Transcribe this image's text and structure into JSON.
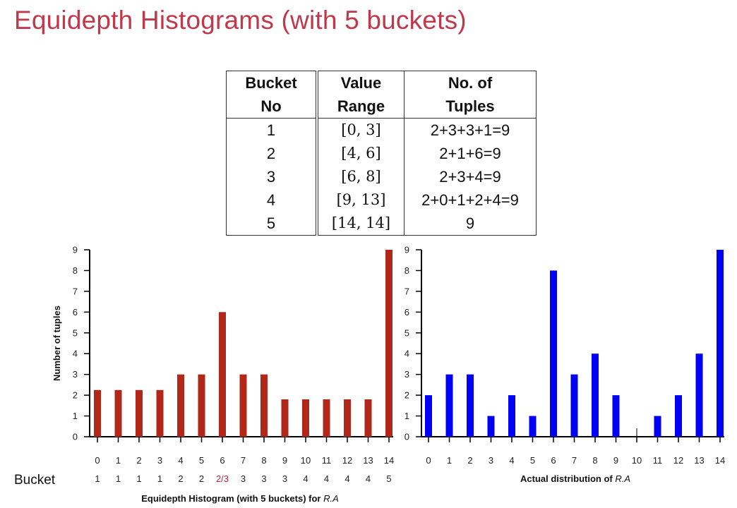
{
  "title": "Equidepth Histograms (with 5 buckets)",
  "table": {
    "headers": [
      [
        "Bucket",
        "No"
      ],
      [
        "Value",
        "Range"
      ],
      [
        "No. of",
        "Tuples"
      ]
    ],
    "rows": [
      [
        "1",
        "[0, 3]",
        "2+3+3+1=9"
      ],
      [
        "2",
        "[4, 6]",
        "2+1+6=9"
      ],
      [
        "3",
        "[6, 8]",
        "2+3+4=9"
      ],
      [
        "4",
        "[9, 13]",
        "2+0+1+2+4=9"
      ],
      [
        "5",
        "[14, 14]",
        "9"
      ]
    ]
  },
  "bucket_row_label": "Bucket",
  "chart_data": [
    {
      "type": "bar",
      "ylabel": "Number of tuples",
      "xlabel_prefix": "Equidepth Histogram (with 5 buckets) for ",
      "xlabel_var": "R.A",
      "ylim": [
        0,
        9
      ],
      "yticks": [
        "0",
        "1",
        "2",
        "3",
        "4",
        "5",
        "6",
        "7",
        "8",
        "9"
      ],
      "categories": [
        "0",
        "1",
        "2",
        "3",
        "4",
        "5",
        "6",
        "7",
        "8",
        "9",
        "10",
        "11",
        "12",
        "13",
        "14"
      ],
      "values": [
        2.25,
        2.25,
        2.25,
        2.25,
        3,
        3,
        6,
        3,
        3,
        1.8,
        1.8,
        1.8,
        1.8,
        1.8,
        9
      ],
      "buckets": [
        "1",
        "1",
        "1",
        "1",
        "2",
        "2",
        "2/3",
        "3",
        "3",
        "3",
        "4",
        "4",
        "4",
        "4",
        "5"
      ],
      "highlight_bucket": "2/3",
      "highlight_color": "#b8293d",
      "bar_color": "#b1281a"
    },
    {
      "type": "bar",
      "xlabel_prefix": "Actual distribution of ",
      "xlabel_var": "R.A",
      "ylim": [
        0,
        9
      ],
      "yticks": [
        "0",
        "1",
        "2",
        "3",
        "4",
        "5",
        "6",
        "7",
        "8",
        "9"
      ],
      "categories": [
        "0",
        "1",
        "2",
        "3",
        "4",
        "5",
        "6",
        "7",
        "8",
        "9",
        "10",
        "11",
        "12",
        "13",
        "14"
      ],
      "values": [
        2,
        3,
        3,
        1,
        2,
        1,
        8,
        3,
        4,
        2,
        0,
        1,
        2,
        4,
        9
      ],
      "bar_color": "#0000f5"
    }
  ]
}
